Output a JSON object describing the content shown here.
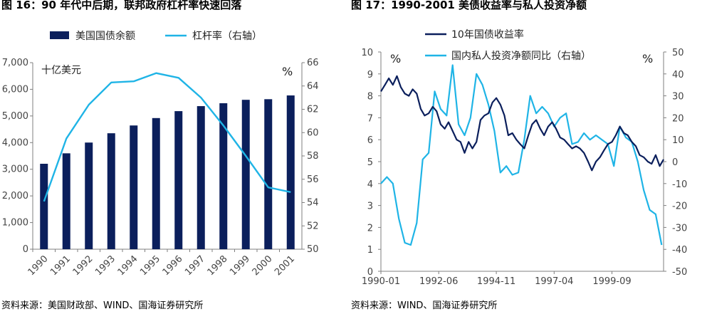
{
  "left": {
    "title": "图 16：90 年代中后期，联邦政府杠杆率快速回落",
    "source": "资料来源：美国财政部、WIND、国海证券研究所",
    "unit_left": "十亿美元",
    "unit_right": "%"
  },
  "right": {
    "title": "图 17：1990-2001 美债收益率与私人投资净额",
    "source": "资料来源：WIND、国海证券研究所",
    "unit_left": "%",
    "unit_right": "%"
  },
  "colors": {
    "navy": "#0b1f5c",
    "cyan": "#1fb4e6",
    "axis": "#7f7f7f"
  },
  "chart_data": [
    {
      "type": "bar",
      "categories": [
        "1990",
        "1991",
        "1992",
        "1993",
        "1994",
        "1995",
        "1996",
        "1997",
        "1998",
        "1999",
        "2000",
        "2001"
      ],
      "series": [
        {
          "name": "美国国债余额",
          "kind": "bar",
          "axis": "left",
          "values": [
            3206,
            3598,
            4002,
            4351,
            4643,
            4921,
            5181,
            5369,
            5478,
            5606,
            5629,
            5770
          ]
        },
        {
          "name": "杠杆率（右轴）",
          "kind": "line",
          "axis": "right",
          "values": [
            54.1,
            59.5,
            62.4,
            64.3,
            64.4,
            65.1,
            64.7,
            63.0,
            60.6,
            58.0,
            55.3,
            54.9
          ]
        }
      ],
      "ylim": [
        0,
        7000
      ],
      "ylim_right": [
        50,
        66
      ],
      "y_ticks": [
        "0",
        "1,000",
        "2,000",
        "3,000",
        "4,000",
        "5,000",
        "6,000",
        "7,000"
      ],
      "y_ticks_right": [
        "50",
        "52",
        "54",
        "56",
        "58",
        "60",
        "62",
        "64",
        "66"
      ],
      "legend_position": "top"
    },
    {
      "type": "line",
      "x_ticks": [
        "1990-01",
        "1992-06",
        "1994-11",
        "1997-04",
        "1999-09"
      ],
      "series": [
        {
          "name": "10年国债收益率",
          "axis": "left",
          "x": [
            1990.0,
            1990.17,
            1990.33,
            1990.5,
            1990.67,
            1990.83,
            1991.0,
            1991.17,
            1991.33,
            1991.5,
            1991.67,
            1991.83,
            1992.0,
            1992.17,
            1992.33,
            1992.5,
            1992.67,
            1992.83,
            1993.0,
            1993.17,
            1993.33,
            1993.5,
            1993.67,
            1993.83,
            1994.0,
            1994.17,
            1994.33,
            1994.5,
            1994.67,
            1994.83,
            1995.0,
            1995.17,
            1995.33,
            1995.5,
            1995.67,
            1995.83,
            1996.0,
            1996.17,
            1996.33,
            1996.5,
            1996.67,
            1996.83,
            1997.0,
            1997.17,
            1997.33,
            1997.5,
            1997.67,
            1997.83,
            1998.0,
            1998.17,
            1998.33,
            1998.5,
            1998.67,
            1998.83,
            1999.0,
            1999.17,
            1999.33,
            1999.5,
            1999.67,
            1999.83,
            2000.0,
            2000.17,
            2000.33,
            2000.5,
            2000.67,
            2000.83,
            2001.0,
            2001.17,
            2001.33,
            2001.5,
            2001.67,
            2001.83
          ],
          "values": [
            8.2,
            8.5,
            8.8,
            8.5,
            8.9,
            8.4,
            8.1,
            8.0,
            8.3,
            8.1,
            7.4,
            7.1,
            7.2,
            7.5,
            7.3,
            6.7,
            6.5,
            6.8,
            6.4,
            6.0,
            5.9,
            5.4,
            5.9,
            5.6,
            5.9,
            6.9,
            7.1,
            7.2,
            7.7,
            7.9,
            7.6,
            7.1,
            6.2,
            6.3,
            6.0,
            5.8,
            5.6,
            6.2,
            6.7,
            6.9,
            6.5,
            6.2,
            6.6,
            6.8,
            6.5,
            6.1,
            6.0,
            5.8,
            5.6,
            5.7,
            5.6,
            5.4,
            5.0,
            4.6,
            5.0,
            5.2,
            5.5,
            5.8,
            5.9,
            6.2,
            6.6,
            6.3,
            6.2,
            5.9,
            5.7,
            5.3,
            5.2,
            5.0,
            4.9,
            5.3,
            4.8,
            5.1
          ]
        },
        {
          "name": "国内私人投资净额同比（右轴）",
          "axis": "right",
          "x": [
            1990.0,
            1990.25,
            1990.5,
            1990.75,
            1991.0,
            1991.25,
            1991.5,
            1991.75,
            1992.0,
            1992.25,
            1992.5,
            1992.75,
            1993.0,
            1993.25,
            1993.5,
            1993.75,
            1994.0,
            1994.25,
            1994.5,
            1994.75,
            1995.0,
            1995.25,
            1995.5,
            1995.75,
            1996.0,
            1996.25,
            1996.5,
            1996.75,
            1997.0,
            1997.25,
            1997.5,
            1997.75,
            1998.0,
            1998.25,
            1998.5,
            1998.75,
            1999.0,
            1999.25,
            1999.5,
            1999.75,
            2000.0,
            2000.25,
            2000.5,
            2000.75,
            2001.0,
            2001.25,
            2001.5,
            2001.75
          ],
          "values": [
            -10,
            -7,
            -10,
            -26,
            -37,
            -38,
            -28,
            1,
            4,
            32,
            24,
            21,
            44,
            17,
            12,
            20,
            40,
            35,
            26,
            14,
            -5,
            -2,
            -6,
            -5,
            10,
            30,
            22,
            25,
            22,
            16,
            20,
            22,
            8,
            9,
            13,
            10,
            12,
            10,
            8,
            -2,
            16,
            11,
            9,
            0,
            -13,
            -22,
            -24,
            -38
          ]
        }
      ],
      "ylim": [
        0,
        10
      ],
      "ylim_right": [
        -50,
        50
      ],
      "y_ticks": [
        "0",
        "1",
        "2",
        "3",
        "4",
        "5",
        "6",
        "7",
        "8",
        "9",
        "10"
      ],
      "y_ticks_right": [
        "-50",
        "-40",
        "-30",
        "-20",
        "-10",
        "0",
        "10",
        "20",
        "30",
        "40",
        "50"
      ],
      "legend_position": "top-left"
    }
  ]
}
